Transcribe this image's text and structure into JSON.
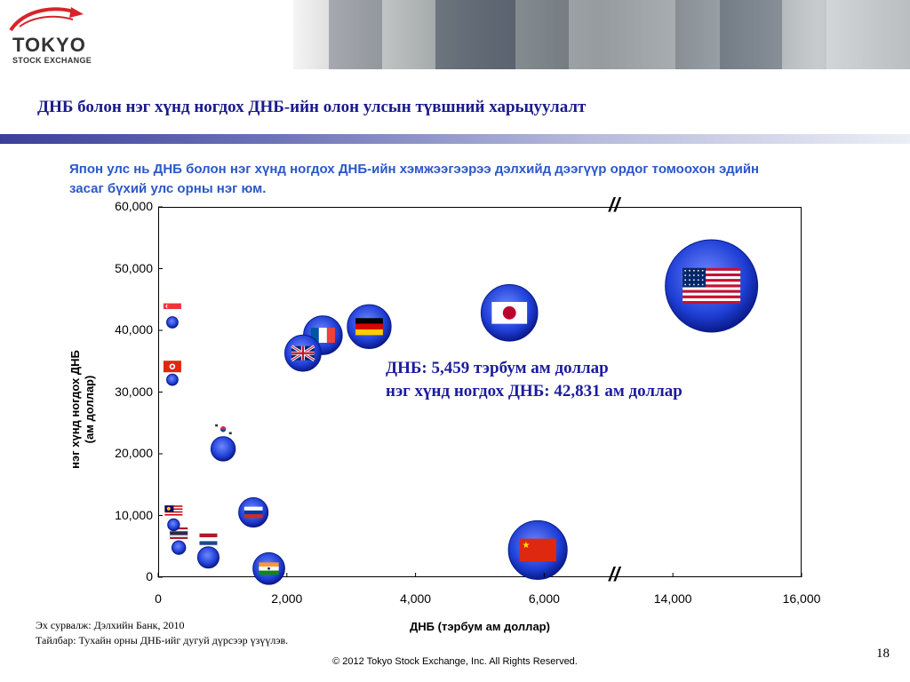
{
  "logo": {
    "name": "TOKYO",
    "sub": "STOCK EXCHANGE"
  },
  "page_title": "ДНБ болон нэг хүнд ногдох ДНБ-ийн олон улсын түвшний харьцуулалт",
  "subtitle": "Япон улс нь ДНБ болон нэг хүнд ногдох ДНБ-ийн хэмжээгээрээ дэлхийд дээгүүр ордог томоохон эдийн засаг бүхий улс орны нэг юм.",
  "annotation": {
    "line1": "ДНБ: 5,459 тэрбум ам доллар",
    "line2": "нэг хүнд ногдох ДНБ: 42,831 ам доллар"
  },
  "axis_break_label": "//",
  "footnotes": {
    "source": "Эх сурвалж: Дэлхийн Банк, 2010",
    "note": "Тайлбар: Тухайн орны ДНБ-ийг дугуй дүрсээр үзүүлэв."
  },
  "page_number": "18",
  "copyright": "© 2012 Tokyo Stock Exchange, Inc. All Rights Reserved.",
  "colors": {
    "accent": "#1a1a8c",
    "subtitle": "#2a58c8",
    "bubble": "#1f3fd6",
    "bubble_edge": "#0a1a8a"
  },
  "chart_data": {
    "type": "scatter",
    "title": "",
    "xlabel": "ДНБ (тэрбум ам доллар)",
    "ylabel": "нэг хүнд ногдох ДНБ\n(ам доллар)",
    "x_ticks": [
      "0",
      "2,000",
      "4,000",
      "6,000",
      "14,000",
      "16,000"
    ],
    "y_ticks": [
      "0",
      "10,000",
      "20,000",
      "30,000",
      "40,000",
      "50,000",
      "60,000"
    ],
    "x_axis_break": [
      7000,
      13000
    ],
    "ylim": [
      0,
      60000
    ],
    "grid": false,
    "bubble_size": "GDP",
    "points": [
      {
        "flag": "usa",
        "x": 14600,
        "y": 47200
      },
      {
        "flag": "japan",
        "x": 5459,
        "y": 42831
      },
      {
        "flag": "china",
        "x": 5900,
        "y": 4400
      },
      {
        "flag": "germany",
        "x": 3280,
        "y": 40600
      },
      {
        "flag": "france",
        "x": 2560,
        "y": 39200
      },
      {
        "flag": "uk",
        "x": 2250,
        "y": 36300
      },
      {
        "flag": "india",
        "x": 1720,
        "y": 1400
      },
      {
        "flag": "russia",
        "x": 1480,
        "y": 10500
      },
      {
        "flag": "korea",
        "x": 1010,
        "y": 20800
      },
      {
        "flag": "netherlands",
        "x": 780,
        "y": 3200
      },
      {
        "flag": "thailand",
        "x": 320,
        "y": 4800
      },
      {
        "flag": "malaysia",
        "x": 240,
        "y": 8500
      },
      {
        "flag": "hongkong",
        "x": 220,
        "y": 32000
      },
      {
        "flag": "singapore",
        "x": 220,
        "y": 41300
      }
    ]
  }
}
